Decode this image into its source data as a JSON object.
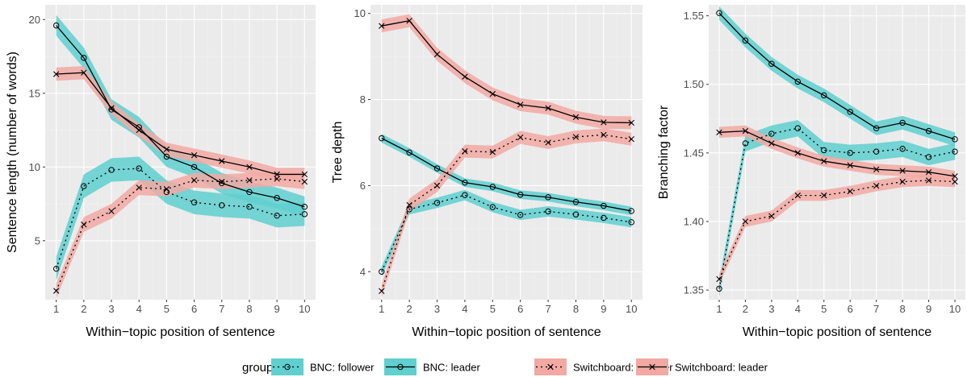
{
  "chart_data": [
    {
      "type": "line",
      "xlabel": "Within−topic position of sentence",
      "ylabel": "Sentence length (number of words)",
      "x": [
        1,
        2,
        3,
        4,
        5,
        6,
        7,
        8,
        9,
        10
      ],
      "xlim": [
        0.6,
        10.4
      ],
      "ylim": [
        1.0,
        21.0
      ],
      "yticks": [
        5,
        10,
        15,
        20
      ],
      "ytick_labels": [
        "5",
        "10",
        "15",
        "20"
      ],
      "series": [
        {
          "name": "BNC: follower",
          "values": [
            3.1,
            8.7,
            9.8,
            9.9,
            8.3,
            7.6,
            7.4,
            7.3,
            6.7,
            6.8
          ],
          "band": 0.8
        },
        {
          "name": "BNC: leader",
          "values": [
            19.6,
            17.4,
            13.9,
            12.7,
            10.7,
            10.0,
            8.9,
            8.3,
            7.9,
            7.3
          ],
          "band": 0.7
        },
        {
          "name": "Switchboard: follower",
          "values": [
            1.6,
            6.1,
            7.0,
            8.6,
            8.5,
            9.1,
            9.0,
            9.1,
            9.2,
            9.0
          ],
          "band": 0.5
        },
        {
          "name": "Switchboard: leader",
          "values": [
            16.3,
            16.4,
            14.0,
            12.5,
            11.2,
            10.8,
            10.4,
            10.0,
            9.5,
            9.5
          ],
          "band": 0.45
        }
      ]
    },
    {
      "type": "line",
      "xlabel": "Within−topic position of sentence",
      "ylabel": "Tree depth",
      "x": [
        1,
        2,
        3,
        4,
        5,
        6,
        7,
        8,
        9,
        10
      ],
      "xlim": [
        0.6,
        10.4
      ],
      "ylim": [
        3.35,
        10.2
      ],
      "yticks": [
        4,
        6,
        8,
        10
      ],
      "ytick_labels": [
        "4",
        "6",
        "8",
        "10"
      ],
      "series": [
        {
          "name": "BNC: follower",
          "values": [
            4.0,
            5.45,
            5.6,
            5.78,
            5.5,
            5.32,
            5.4,
            5.33,
            5.25,
            5.15
          ],
          "band": 0.12
        },
        {
          "name": "BNC: leader",
          "values": [
            7.1,
            6.77,
            6.4,
            6.07,
            5.97,
            5.79,
            5.73,
            5.62,
            5.53,
            5.41
          ],
          "band": 0.1
        },
        {
          "name": "Switchboard: follower",
          "values": [
            3.55,
            5.55,
            6.0,
            6.8,
            6.78,
            7.12,
            7.0,
            7.13,
            7.18,
            7.08
          ],
          "band": 0.15
        },
        {
          "name": "Switchboard: leader",
          "values": [
            9.71,
            9.83,
            9.05,
            8.53,
            8.13,
            7.88,
            7.8,
            7.59,
            7.47,
            7.46
          ],
          "band": 0.15
        }
      ]
    },
    {
      "type": "line",
      "xlabel": "Within−topic position of sentence",
      "ylabel": "Branching factor",
      "x": [
        1,
        2,
        3,
        4,
        5,
        6,
        7,
        8,
        9,
        10
      ],
      "xlim": [
        0.6,
        10.4
      ],
      "ylim": [
        1.343,
        1.558
      ],
      "yticks": [
        1.35,
        1.4,
        1.45,
        1.5,
        1.55
      ],
      "ytick_labels": [
        "1.35",
        "1.40",
        "1.45",
        "1.50",
        "1.55"
      ],
      "series": [
        {
          "name": "BNC: follower",
          "values": [
            1.351,
            1.457,
            1.464,
            1.468,
            1.452,
            1.45,
            1.451,
            1.453,
            1.447,
            1.451
          ],
          "band": 0.006
        },
        {
          "name": "BNC: leader",
          "values": [
            1.552,
            1.532,
            1.515,
            1.502,
            1.492,
            1.48,
            1.468,
            1.472,
            1.466,
            1.46
          ],
          "band": 0.005
        },
        {
          "name": "Switchboard: follower",
          "values": [
            1.358,
            1.4,
            1.404,
            1.419,
            1.419,
            1.422,
            1.426,
            1.429,
            1.43,
            1.429
          ],
          "band": 0.004
        },
        {
          "name": "Switchboard: leader",
          "values": [
            1.465,
            1.466,
            1.457,
            1.45,
            1.444,
            1.441,
            1.438,
            1.437,
            1.436,
            1.433
          ],
          "band": 0.004
        }
      ]
    }
  ],
  "legend": {
    "title": "group",
    "position": "bottom",
    "items": [
      {
        "label": "BNC: follower",
        "fill": "#5fcfcf",
        "line": "dotted",
        "marker": "circle"
      },
      {
        "label": "BNC: leader",
        "fill": "#5fcfcf",
        "line": "solid",
        "marker": "circle"
      },
      {
        "label": "Switchboard: follower",
        "fill": "#f2a9a3",
        "line": "dotted",
        "marker": "cross"
      },
      {
        "label": "Switchboard: leader",
        "fill": "#f2a9a3",
        "line": "solid",
        "marker": "cross"
      }
    ]
  },
  "colors": {
    "bnc_band": "#5fcfcf",
    "switchboard_band": "#f2a9a3",
    "line": "#000000",
    "panel": "#ebebeb"
  }
}
